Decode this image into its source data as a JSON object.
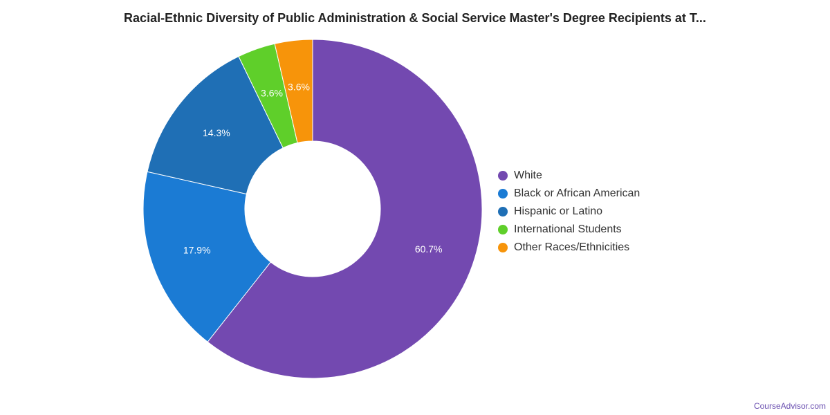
{
  "chart_data": {
    "type": "pie",
    "title": "Racial-Ethnic Diversity of Public Administration & Social Service Master's Degree Recipients at T...",
    "categories": [
      "White",
      "Black or African American",
      "Hispanic or Latino",
      "International Students",
      "Other Races/Ethnicities"
    ],
    "values": [
      60.7,
      17.9,
      14.3,
      3.6,
      3.6
    ],
    "value_labels": [
      "60.7%",
      "17.9%",
      "14.3%",
      "3.6%",
      "3.6%"
    ],
    "colors": [
      "#7349b0",
      "#1b7bd4",
      "#1f6fb5",
      "#5fcf2a",
      "#f7940a"
    ],
    "legend_position": "right"
  },
  "watermark": "CourseAdvisor.com"
}
